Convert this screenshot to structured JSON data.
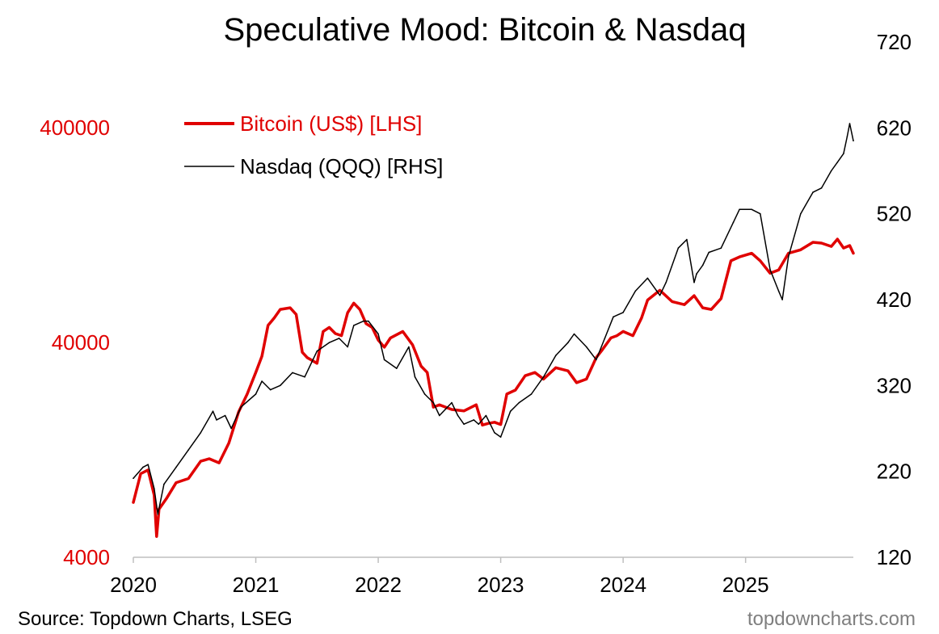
{
  "chart_data": {
    "type": "line",
    "title": "Speculative Mood: Bitcoin & Nasdaq",
    "x_ticks": [
      "2020",
      "2021",
      "2022",
      "2023",
      "2024",
      "2025"
    ],
    "x_range": [
      2020.0,
      2025.88
    ],
    "y_left": {
      "scale": "log",
      "range": [
        4000,
        400000
      ],
      "ticks": [
        "4000",
        "40000",
        "400000"
      ],
      "color": "#e00000"
    },
    "y_right": {
      "scale": "linear",
      "range": [
        120,
        720
      ],
      "ticks": [
        "120",
        "220",
        "320",
        "420",
        "520",
        "620",
        "720"
      ],
      "color": "#000000"
    },
    "legend_position": "top-left",
    "series": [
      {
        "name": "Bitcoin (US$) [LHS]",
        "axis": "left",
        "color": "#e00000",
        "x": [
          2020.0,
          2020.06,
          2020.12,
          2020.17,
          2020.19,
          2020.21,
          2020.27,
          2020.35,
          2020.45,
          2020.55,
          2020.62,
          2020.7,
          2020.78,
          2020.86,
          2020.93,
          2021.0,
          2021.05,
          2021.1,
          2021.15,
          2021.2,
          2021.28,
          2021.33,
          2021.38,
          2021.42,
          2021.5,
          2021.55,
          2021.6,
          2021.65,
          2021.7,
          2021.75,
          2021.8,
          2021.85,
          2021.9,
          2021.95,
          2022.0,
          2022.05,
          2022.1,
          2022.2,
          2022.28,
          2022.35,
          2022.4,
          2022.45,
          2022.5,
          2022.6,
          2022.7,
          2022.8,
          2022.85,
          2022.9,
          2022.95,
          2023.0,
          2023.05,
          2023.12,
          2023.2,
          2023.28,
          2023.35,
          2023.45,
          2023.55,
          2023.62,
          2023.7,
          2023.78,
          2023.83,
          2023.9,
          2023.95,
          2024.0,
          2024.08,
          2024.15,
          2024.2,
          2024.3,
          2024.4,
          2024.5,
          2024.58,
          2024.65,
          2024.72,
          2024.8,
          2024.88,
          2024.95,
          2025.05,
          2025.12,
          2025.2,
          2025.27,
          2025.35,
          2025.45,
          2025.55,
          2025.62,
          2025.7,
          2025.75,
          2025.8,
          2025.85,
          2025.88
        ],
        "values": [
          7200,
          9800,
          10200,
          7800,
          5000,
          6700,
          7500,
          8900,
          9300,
          11200,
          11500,
          11000,
          13600,
          19000,
          23000,
          29000,
          34500,
          48000,
          52000,
          57000,
          58000,
          54000,
          36000,
          34000,
          32000,
          45000,
          47000,
          44000,
          43000,
          55000,
          61000,
          57000,
          49000,
          47000,
          41000,
          38000,
          42000,
          45000,
          39000,
          31000,
          29000,
          20000,
          20500,
          19500,
          19200,
          20500,
          16500,
          16800,
          17000,
          16600,
          23000,
          24000,
          28000,
          29000,
          27000,
          30500,
          29500,
          26000,
          27000,
          34000,
          37000,
          42000,
          43000,
          45000,
          43000,
          52000,
          63000,
          70000,
          62000,
          60000,
          66000,
          58000,
          57000,
          64000,
          96000,
          100000,
          104000,
          96000,
          84000,
          87000,
          104000,
          108000,
          117000,
          116000,
          112000,
          121000,
          110000,
          113000,
          104000
        ]
      },
      {
        "name": "Nasdaq (QQQ) [RHS]",
        "axis": "right",
        "color": "#000000",
        "x": [
          2020.0,
          2020.08,
          2020.12,
          2020.17,
          2020.2,
          2020.25,
          2020.35,
          2020.45,
          2020.55,
          2020.65,
          2020.68,
          2020.75,
          2020.8,
          2020.88,
          2021.0,
          2021.05,
          2021.12,
          2021.2,
          2021.3,
          2021.4,
          2021.5,
          2021.6,
          2021.68,
          2021.75,
          2021.8,
          2021.88,
          2021.92,
          2022.0,
          2022.05,
          2022.15,
          2022.25,
          2022.3,
          2022.38,
          2022.45,
          2022.5,
          2022.6,
          2022.65,
          2022.7,
          2022.78,
          2022.82,
          2022.88,
          2022.95,
          2023.0,
          2023.08,
          2023.15,
          2023.25,
          2023.35,
          2023.45,
          2023.55,
          2023.6,
          2023.7,
          2023.78,
          2023.85,
          2023.92,
          2024.0,
          2024.1,
          2024.2,
          2024.3,
          2024.35,
          2024.45,
          2024.52,
          2024.58,
          2024.6,
          2024.65,
          2024.7,
          2024.8,
          2024.9,
          2024.95,
          2025.05,
          2025.12,
          2025.2,
          2025.27,
          2025.3,
          2025.35,
          2025.45,
          2025.55,
          2025.62,
          2025.7,
          2025.75,
          2025.8,
          2025.83,
          2025.85,
          2025.88
        ],
        "values": [
          212,
          225,
          228,
          200,
          170,
          205,
          225,
          245,
          265,
          290,
          280,
          285,
          270,
          295,
          310,
          325,
          315,
          320,
          335,
          330,
          360,
          370,
          375,
          365,
          390,
          395,
          395,
          380,
          350,
          340,
          365,
          330,
          310,
          300,
          285,
          300,
          285,
          275,
          280,
          275,
          285,
          265,
          260,
          290,
          300,
          310,
          330,
          355,
          370,
          380,
          365,
          350,
          375,
          400,
          405,
          430,
          445,
          425,
          440,
          480,
          490,
          440,
          450,
          460,
          475,
          480,
          510,
          525,
          525,
          520,
          455,
          430,
          420,
          470,
          520,
          545,
          550,
          570,
          580,
          590,
          610,
          625,
          605
        ]
      }
    ]
  },
  "footer": {
    "source": "Source: Topdown Charts, LSEG",
    "brand": "topdowncharts.com"
  }
}
